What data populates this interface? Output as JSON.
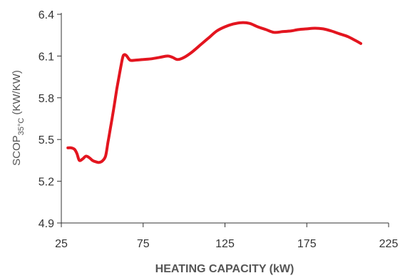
{
  "chart_data": {
    "type": "line",
    "title": "",
    "xlabel": "HEATING CAPACITY (kW)",
    "ylabel": {
      "main": "SCOP",
      "subscript": "35°C",
      "unit": " (KW/KW)"
    },
    "xlim": [
      25,
      225
    ],
    "ylim": [
      4.9,
      6.4
    ],
    "xticks": [
      "25",
      "75",
      "125",
      "175",
      "225"
    ],
    "yticks": [
      "6.4",
      "6.1",
      "5.8",
      "5.5",
      "5.2",
      "4.9"
    ],
    "grid": false,
    "legend": "none",
    "series": [
      {
        "color": "#e3151f",
        "points": [
          [
            29,
            5.44
          ],
          [
            31,
            5.44
          ],
          [
            33,
            5.43
          ],
          [
            34.5,
            5.4
          ],
          [
            36,
            5.35
          ],
          [
            38,
            5.36
          ],
          [
            40,
            5.38
          ],
          [
            42,
            5.37
          ],
          [
            44,
            5.35
          ],
          [
            46,
            5.34
          ],
          [
            48,
            5.335
          ],
          [
            50,
            5.345
          ],
          [
            52,
            5.38
          ],
          [
            53.5,
            5.48
          ],
          [
            55,
            5.58
          ],
          [
            57,
            5.72
          ],
          [
            59,
            5.87
          ],
          [
            61,
            6.0
          ],
          [
            62.5,
            6.09
          ],
          [
            63.5,
            6.11
          ],
          [
            65,
            6.1
          ],
          [
            67,
            6.07
          ],
          [
            70,
            6.07
          ],
          [
            75,
            6.075
          ],
          [
            80,
            6.08
          ],
          [
            85,
            6.09
          ],
          [
            90,
            6.1
          ],
          [
            93,
            6.09
          ],
          [
            96,
            6.075
          ],
          [
            100,
            6.09
          ],
          [
            105,
            6.13
          ],
          [
            110,
            6.18
          ],
          [
            115,
            6.23
          ],
          [
            120,
            6.28
          ],
          [
            125,
            6.31
          ],
          [
            130,
            6.33
          ],
          [
            135,
            6.34
          ],
          [
            140,
            6.335
          ],
          [
            145,
            6.31
          ],
          [
            150,
            6.29
          ],
          [
            155,
            6.27
          ],
          [
            160,
            6.275
          ],
          [
            165,
            6.28
          ],
          [
            170,
            6.29
          ],
          [
            175,
            6.295
          ],
          [
            180,
            6.3
          ],
          [
            185,
            6.295
          ],
          [
            190,
            6.28
          ],
          [
            195,
            6.26
          ],
          [
            200,
            6.24
          ],
          [
            205,
            6.21
          ],
          [
            208,
            6.19
          ]
        ]
      }
    ]
  }
}
